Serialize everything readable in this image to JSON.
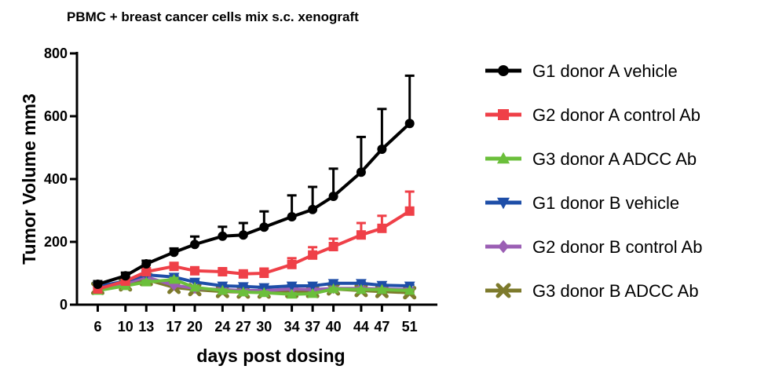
{
  "chart_data": {
    "type": "line",
    "title": "PBMC + breast cancer cells mix s.c. xenograft",
    "xlabel": "days post dosing",
    "ylabel": "Tumor Volume mm3",
    "xlim": [
      3,
      55
    ],
    "ylim": [
      0,
      800
    ],
    "x_ticks": [
      6,
      10,
      13,
      17,
      20,
      24,
      27,
      30,
      34,
      37,
      40,
      44,
      47,
      51
    ],
    "y_ticks": [
      0,
      200,
      400,
      600,
      800
    ],
    "x": [
      6,
      10,
      13,
      17,
      20,
      24,
      27,
      30,
      34,
      37,
      40,
      44,
      47,
      51
    ],
    "legend_position": "right",
    "grid": false,
    "series": [
      {
        "name": "G1 donor A vehicle",
        "color": "#000000",
        "marker": "circle",
        "values": [
          65,
          92,
          130,
          167,
          192,
          218,
          222,
          247,
          280,
          303,
          345,
          422,
          495,
          577
        ],
        "errors": [
          10,
          10,
          10,
          12,
          25,
          30,
          38,
          50,
          68,
          72,
          88,
          112,
          128,
          152
        ]
      },
      {
        "name": "G2 donor A control Ab",
        "color": "#ef4048",
        "marker": "square",
        "values": [
          50,
          75,
          105,
          122,
          108,
          105,
          98,
          100,
          128,
          158,
          185,
          222,
          243,
          298
        ],
        "errors": [
          5,
          5,
          8,
          10,
          8,
          8,
          6,
          15,
          20,
          25,
          25,
          38,
          40,
          62
        ]
      },
      {
        "name": "G3 donor A ADCC Ab",
        "color": "#6bbf3b",
        "marker": "triangle-up",
        "values": [
          45,
          60,
          72,
          80,
          55,
          45,
          40,
          38,
          33,
          35,
          50,
          48,
          48,
          45
        ],
        "errors": [
          3,
          3,
          5,
          5,
          4,
          3,
          3,
          3,
          3,
          3,
          3,
          3,
          3,
          3
        ]
      },
      {
        "name": "G1 donor B  vehicle",
        "color": "#1e4ea8",
        "marker": "triangle-down",
        "values": [
          58,
          75,
          95,
          88,
          72,
          60,
          58,
          55,
          60,
          60,
          68,
          68,
          62,
          60
        ],
        "errors": [
          3,
          3,
          4,
          4,
          4,
          3,
          3,
          3,
          3,
          3,
          3,
          3,
          3,
          3
        ]
      },
      {
        "name": "G2 donor B control Ab",
        "color": "#9b5fb4",
        "marker": "diamond",
        "values": [
          55,
          68,
          88,
          62,
          52,
          48,
          45,
          45,
          50,
          48,
          52,
          52,
          50,
          48
        ],
        "errors": [
          3,
          3,
          4,
          3,
          3,
          3,
          3,
          3,
          3,
          3,
          3,
          3,
          3,
          3
        ]
      },
      {
        "name": "G3 donor B ADCC Ab",
        "color": "#7d7a2c",
        "marker": "x",
        "values": [
          52,
          63,
          80,
          55,
          48,
          42,
          40,
          40,
          42,
          42,
          50,
          45,
          42,
          38
        ],
        "errors": [
          3,
          3,
          3,
          3,
          3,
          3,
          3,
          3,
          3,
          3,
          3,
          3,
          3,
          3
        ]
      }
    ]
  }
}
